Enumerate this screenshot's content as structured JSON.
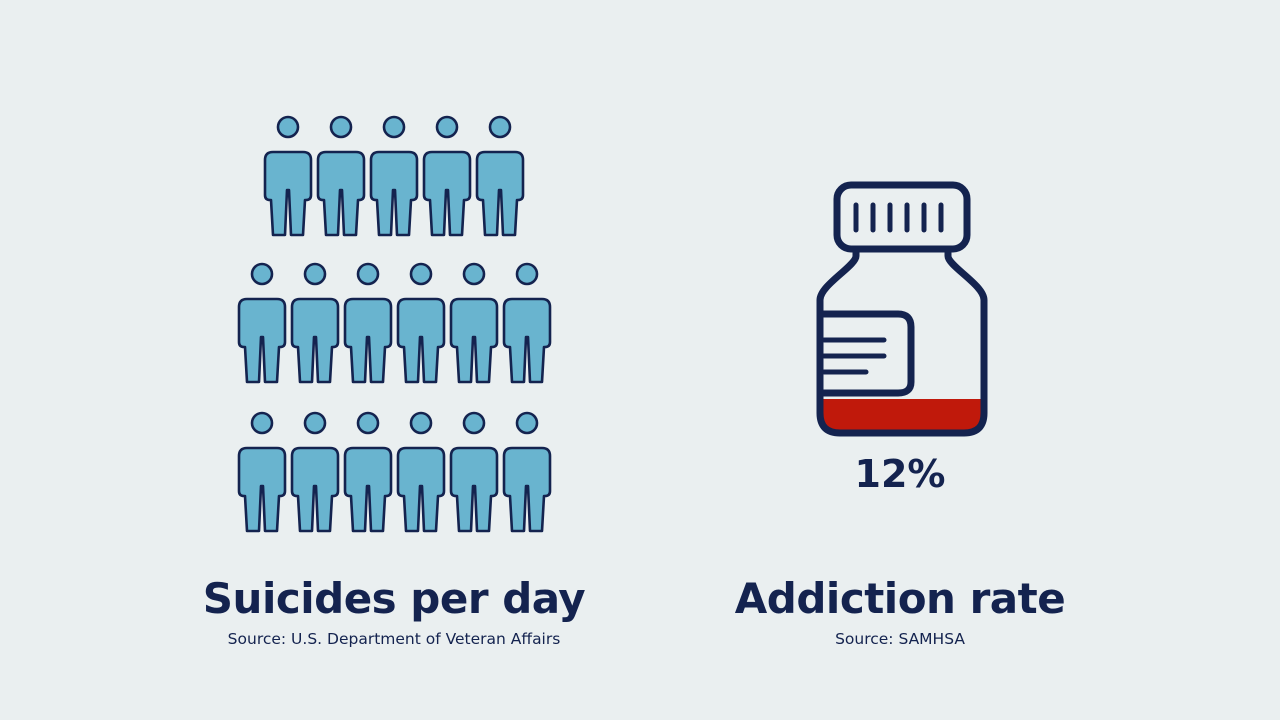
{
  "left_panel": {
    "title": "Suicides per day",
    "source": "Source: U.S. Department of Veteran Affairs",
    "people_count": 17,
    "icon": "person-icon"
  },
  "right_panel": {
    "title": "Addiction rate",
    "source": "Source: SAMHSA",
    "value_label": "12%",
    "fill_fraction": 0.12,
    "icon": "pill-bottle-icon"
  },
  "colors": {
    "background": "#eaeff0",
    "navy": "#14234f",
    "person_fill": "#69b4cf",
    "liquid": "#c0190b"
  }
}
